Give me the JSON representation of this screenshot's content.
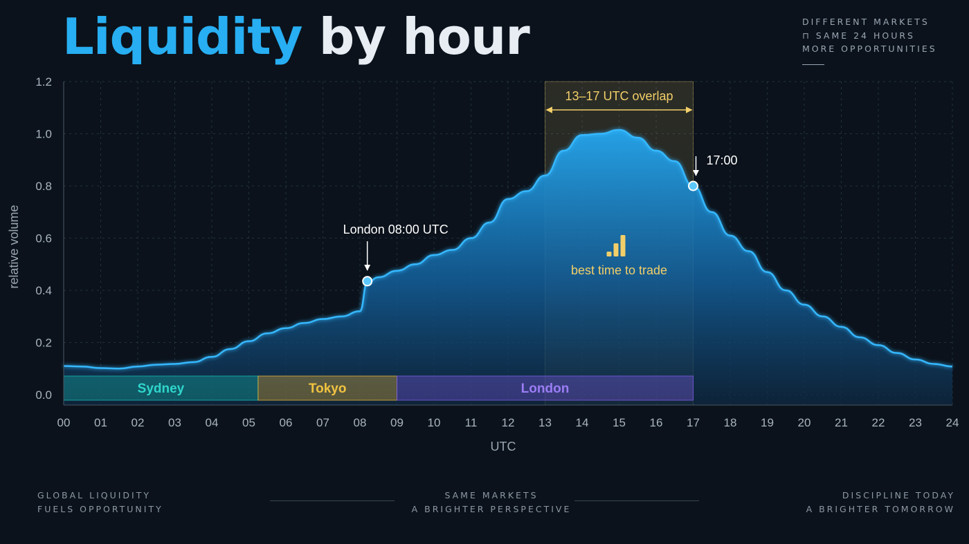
{
  "header": {
    "title_accent": "Liquidity",
    "title_rest": "by hour",
    "tagline": [
      "DIFFERENT MARKETS",
      "⊓ SAME 24 HOURS",
      "MORE OPPORTUNITIES"
    ]
  },
  "footer": {
    "left": [
      "GLOBAL LIQUIDITY",
      "FUELS OPPORTUNITY"
    ],
    "center": [
      "SAME MARKETS",
      "A BRIGHTER PERSPECTIVE"
    ],
    "right": [
      "DISCIPLINE TODAY",
      "A BRIGHTER TOMORROW"
    ]
  },
  "colors": {
    "background": "#0b121b",
    "accent": "#28aef2",
    "overlap": "#f2cf69",
    "sydney": "#17b8b0",
    "tokyo": "#e4b23a",
    "london": "#7d5ae6"
  },
  "chart_data": {
    "type": "area",
    "xlabel": "UTC",
    "ylabel": "relative volume",
    "xlim": [
      0,
      24
    ],
    "ylim": [
      0,
      1.2
    ],
    "x_tick_labels": [
      "00",
      "01",
      "02",
      "03",
      "04",
      "05",
      "06",
      "07",
      "08",
      "09",
      "10",
      "11",
      "12",
      "13",
      "14",
      "15",
      "16",
      "17",
      "18",
      "19",
      "20",
      "21",
      "22",
      "23",
      "24"
    ],
    "y_ticks": [
      0.0,
      0.2,
      0.4,
      0.6,
      0.8,
      1.0,
      1.2
    ],
    "y_tick_labels": [
      "0.0",
      "0.2",
      "0.4",
      "0.6",
      "0.8",
      "1.0",
      "1.2"
    ],
    "grid": true,
    "series": [
      {
        "x": [
          0,
          0.5,
          1,
          1.5,
          2,
          2.5,
          3,
          3.5,
          4,
          4.5,
          5,
          5.5,
          6,
          6.5,
          7,
          7.5,
          8,
          8.2,
          8.5,
          9,
          9.5,
          10,
          10.5,
          11,
          11.5,
          12,
          12.5,
          13,
          13.5,
          14,
          14.5,
          15,
          15.5,
          16,
          16.5,
          17,
          17.5,
          18,
          18.5,
          19,
          19.5,
          20,
          20.5,
          21,
          21.5,
          22,
          22.5,
          23,
          23.5,
          24
        ],
        "y": [
          0.11,
          0.108,
          0.102,
          0.1,
          0.108,
          0.115,
          0.118,
          0.125,
          0.145,
          0.175,
          0.205,
          0.235,
          0.255,
          0.275,
          0.29,
          0.3,
          0.32,
          0.43,
          0.45,
          0.475,
          0.5,
          0.535,
          0.555,
          0.6,
          0.66,
          0.75,
          0.78,
          0.84,
          0.935,
          0.995,
          1.0,
          1.015,
          0.985,
          0.935,
          0.895,
          0.8,
          0.7,
          0.61,
          0.55,
          0.47,
          0.4,
          0.345,
          0.3,
          0.26,
          0.22,
          0.19,
          0.16,
          0.135,
          0.118,
          0.108
        ]
      }
    ],
    "sessions": [
      {
        "name": "Sydney",
        "start": 0,
        "end": 5.25
      },
      {
        "name": "Tokyo",
        "start": 5.25,
        "end": 9
      },
      {
        "name": "London",
        "start": 9,
        "end": 17
      }
    ],
    "overlap": {
      "start": 13,
      "end": 17,
      "label": "13–17 UTC overlap",
      "note": "best time to trade"
    },
    "markers": [
      {
        "x": 8.2,
        "y": 0.435,
        "label": "London 08:00 UTC"
      },
      {
        "x": 17,
        "y": 0.8,
        "label": "17:00"
      }
    ]
  }
}
